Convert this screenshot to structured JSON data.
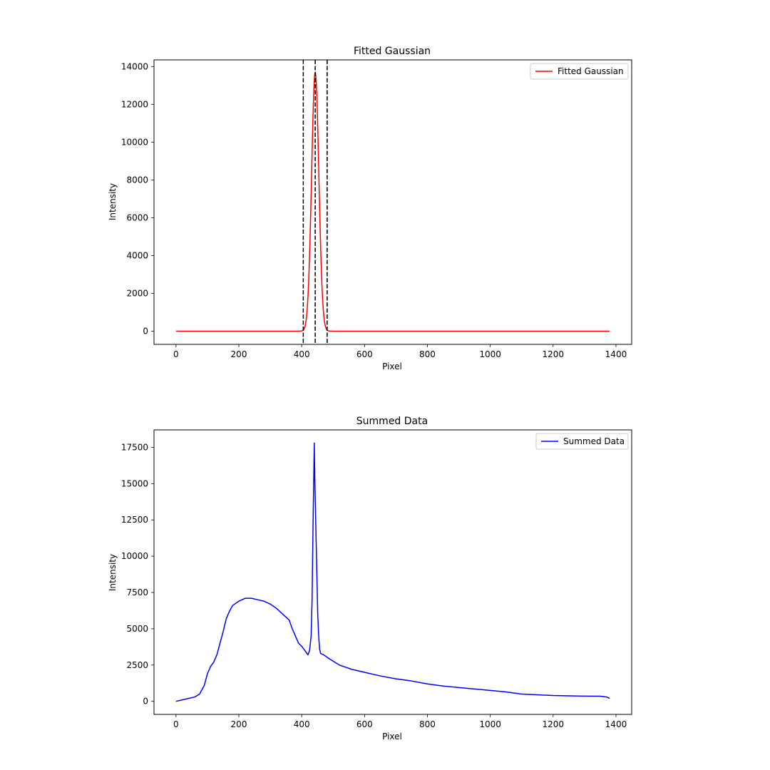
{
  "chart_data": [
    {
      "type": "line",
      "title": "Fitted Gaussian",
      "xlabel": "Pixel",
      "ylabel": "Intensity",
      "xlim": [
        -70,
        1450
      ],
      "ylim": [
        -700,
        14350
      ],
      "xticks": [
        0,
        200,
        400,
        600,
        800,
        1000,
        1200,
        1400
      ],
      "yticks": [
        0,
        2000,
        4000,
        6000,
        8000,
        10000,
        12000,
        14000
      ],
      "legend": "upper-right",
      "grid": false,
      "series": [
        {
          "name": "Fitted Gaussian",
          "color": "#ff0000",
          "model": "gaussian",
          "amplitude": 13700,
          "center": 443,
          "sigma": 11.5,
          "x_range": [
            0,
            1380
          ]
        }
      ],
      "vlines": [
        {
          "x": 405,
          "color": "#000000",
          "style": "dashed"
        },
        {
          "x": 443,
          "color": "#000000",
          "style": "dashed"
        },
        {
          "x": 481,
          "color": "#000000",
          "style": "dashed"
        }
      ]
    },
    {
      "type": "line",
      "title": "Summed Data",
      "xlabel": "Pixel",
      "ylabel": "Intensity",
      "xlim": [
        -70,
        1450
      ],
      "ylim": [
        -900,
        18700
      ],
      "xticks": [
        0,
        200,
        400,
        600,
        800,
        1000,
        1200,
        1400
      ],
      "yticks": [
        0,
        2500,
        5000,
        7500,
        10000,
        12500,
        15000,
        17500
      ],
      "legend": "upper-right",
      "grid": false,
      "series": [
        {
          "name": "Summed Data",
          "color": "#0000ff",
          "x": [
            0,
            30,
            60,
            75,
            90,
            100,
            110,
            120,
            130,
            140,
            150,
            160,
            170,
            180,
            200,
            220,
            240,
            260,
            280,
            300,
            320,
            340,
            350,
            360,
            370,
            380,
            390,
            400,
            410,
            420,
            425,
            430,
            433,
            436,
            440,
            442,
            445,
            448,
            451,
            454,
            457,
            460,
            470,
            490,
            520,
            560,
            600,
            650,
            700,
            750,
            800,
            850,
            900,
            950,
            1000,
            1050,
            1100,
            1150,
            1200,
            1250,
            1300,
            1350,
            1370,
            1380
          ],
          "y": [
            0,
            150,
            300,
            500,
            1100,
            1900,
            2400,
            2700,
            3200,
            4000,
            4800,
            5700,
            6200,
            6600,
            6900,
            7100,
            7100,
            7000,
            6900,
            6700,
            6400,
            6000,
            5800,
            5600,
            5000,
            4500,
            4000,
            3800,
            3500,
            3200,
            3500,
            4500,
            7000,
            12000,
            17800,
            15000,
            12000,
            9000,
            6000,
            4500,
            3600,
            3300,
            3200,
            2900,
            2500,
            2200,
            2000,
            1750,
            1550,
            1400,
            1200,
            1050,
            950,
            850,
            750,
            650,
            500,
            450,
            400,
            380,
            360,
            350,
            300,
            200
          ]
        }
      ]
    }
  ]
}
